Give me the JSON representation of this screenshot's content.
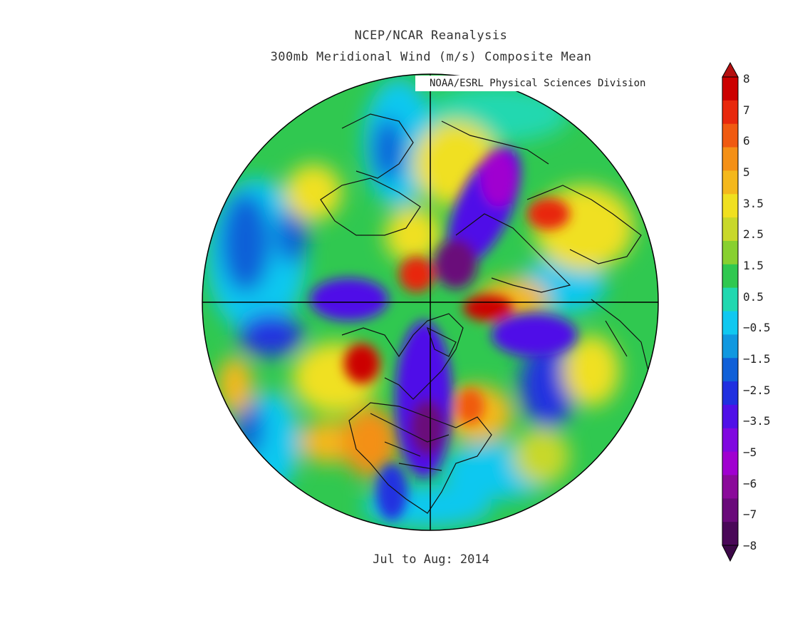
{
  "header": {
    "title": "NCEP/NCAR Reanalysis",
    "subtitle": "300mb Meridional Wind (m/s) Composite Mean",
    "credit": "NOAA/ESRL Physical Sciences Division"
  },
  "caption": "Jul to Aug: 2014",
  "colorbar": {
    "labels": [
      "8",
      "7",
      "6",
      "5",
      "3.5",
      "2.5",
      "1.5",
      "0.5",
      "−0.5",
      "−1.5",
      "−2.5",
      "−3.5",
      "−5",
      "−6",
      "−7",
      "−8"
    ],
    "colors": [
      "#cc0000",
      "#e8280c",
      "#f05a10",
      "#f49016",
      "#f4b81c",
      "#f0e020",
      "#c8d82a",
      "#88d030",
      "#30c850",
      "#20d8b0",
      "#10c8f0",
      "#1098e0",
      "#1060d8",
      "#2030e0",
      "#5010e8",
      "#8008e0",
      "#a000d0",
      "#8a0a9a",
      "#6a0a7a",
      "#4a0858"
    ],
    "top_arrow_color": "#b41010",
    "bottom_arrow_color": "#3c0848"
  },
  "map": {
    "projection": "north-polar-stereographic",
    "background_color": "#30c850"
  }
}
